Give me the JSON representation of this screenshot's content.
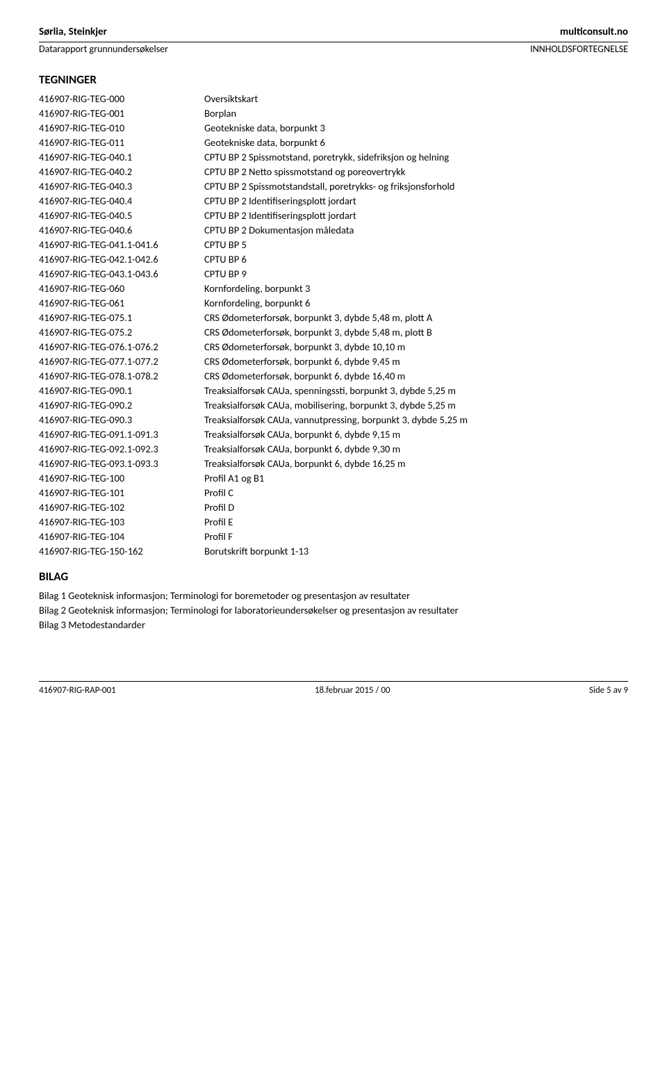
{
  "header": {
    "left_bold": "Sørlia, Steinkjer",
    "right_bold": "multiconsult.no",
    "left_sub": "Datarapport grunnundersøkelser",
    "right_sub": "INNHOLDSFORTEGNELSE"
  },
  "sections": {
    "tegninger_title": "TEGNINGER",
    "bilag_title": "BILAG"
  },
  "toc": [
    {
      "code": "416907-RIG-TEG-000",
      "desc": "Oversiktskart"
    },
    {
      "code": "416907-RIG-TEG-001",
      "desc": "Borplan"
    },
    {
      "code": "416907-RIG-TEG-010",
      "desc": "Geotekniske data, borpunkt 3"
    },
    {
      "code": "416907-RIG-TEG-011",
      "desc": "Geotekniske data, borpunkt 6"
    },
    {
      "code": "416907-RIG-TEG-040.1",
      "desc": "CPTU BP 2 Spissmotstand, poretrykk, sidefriksjon og helning"
    },
    {
      "code": "416907-RIG-TEG-040.2",
      "desc": "CPTU BP 2 Netto spissmotstand og poreovertrykk"
    },
    {
      "code": "416907-RIG-TEG-040.3",
      "desc": "CPTU BP 2 Spissmotstandstall, poretrykks- og friksjonsforhold"
    },
    {
      "code": "416907-RIG-TEG-040.4",
      "desc": "CPTU BP 2 Identifiseringsplott jordart"
    },
    {
      "code": "416907-RIG-TEG-040.5",
      "desc": "CPTU BP 2 Identifiseringsplott jordart"
    },
    {
      "code": "416907-RIG-TEG-040.6",
      "desc": "CPTU BP 2 Dokumentasjon måledata"
    },
    {
      "code": "416907-RIG-TEG-041.1-041.6",
      "desc": "CPTU BP 5"
    },
    {
      "code": "416907-RIG-TEG-042.1-042.6",
      "desc": "CPTU BP 6"
    },
    {
      "code": "416907-RIG-TEG-043.1-043.6",
      "desc": "CPTU BP 9"
    },
    {
      "code": "416907-RIG-TEG-060",
      "desc": "Kornfordeling, borpunkt 3"
    },
    {
      "code": "416907-RIG-TEG-061",
      "desc": "Kornfordeling, borpunkt 6"
    },
    {
      "code": "416907-RIG-TEG-075.1",
      "desc": "CRS Ødometerforsøk, borpunkt 3, dybde 5,48 m, plott A"
    },
    {
      "code": "416907-RIG-TEG-075.2",
      "desc": "CRS Ødometerforsøk, borpunkt 3, dybde 5,48 m, plott B"
    },
    {
      "code": "416907-RIG-TEG-076.1-076.2",
      "desc": "CRS Ødometerforsøk, borpunkt 3, dybde 10,10 m"
    },
    {
      "code": "416907-RIG-TEG-077.1-077.2",
      "desc": "CRS Ødometerforsøk, borpunkt 6, dybde 9,45 m"
    },
    {
      "code": "416907-RIG-TEG-078.1-078.2",
      "desc": "CRS Ødometerforsøk, borpunkt 6, dybde 16,40 m"
    },
    {
      "code": "416907-RIG-TEG-090.1",
      "desc": "Treaksialforsøk CAUa, spenningssti, borpunkt 3, dybde 5,25 m"
    },
    {
      "code": "416907-RIG-TEG-090.2",
      "desc": "Treaksialforsøk CAUa, mobilisering, borpunkt 3, dybde 5,25 m"
    },
    {
      "code": "416907-RIG-TEG-090.3",
      "desc": "Treaksialforsøk CAUa, vannutpressing, borpunkt 3, dybde 5,25 m"
    },
    {
      "code": "416907-RIG-TEG-091.1-091.3",
      "desc": "Treaksialforsøk CAUa, borpunkt 6, dybde 9,15 m"
    },
    {
      "code": "416907-RIG-TEG-092.1-092.3",
      "desc": "Treaksialforsøk CAUa, borpunkt 6, dybde 9,30 m"
    },
    {
      "code": "416907-RIG-TEG-093.1-093.3",
      "desc": "Treaksialforsøk CAUa, borpunkt 6, dybde 16,25 m"
    },
    {
      "code": "416907-RIG-TEG-100",
      "desc": "Profil A1 og B1"
    },
    {
      "code": "416907-RIG-TEG-101",
      "desc": "Profil C"
    },
    {
      "code": "416907-RIG-TEG-102",
      "desc": "Profil D"
    },
    {
      "code": "416907-RIG-TEG-103",
      "desc": "Profil E"
    },
    {
      "code": "416907-RIG-TEG-104",
      "desc": "Profil F"
    },
    {
      "code": "416907-RIG-TEG-150-162",
      "desc": "Borutskrift borpunkt 1-13"
    }
  ],
  "bilag": [
    "Bilag 1 Geoteknisk informasjon; Terminologi for boremetoder og presentasjon av resultater",
    "Bilag 2 Geoteknisk informasjon; Terminologi for laboratorieundersøkelser og presentasjon av resultater",
    "Bilag 3 Metodestandarder"
  ],
  "footer": {
    "left": "416907-RIG-RAP-001",
    "center": "18.februar 2015 / 00",
    "right": "Side 5 av 9"
  }
}
